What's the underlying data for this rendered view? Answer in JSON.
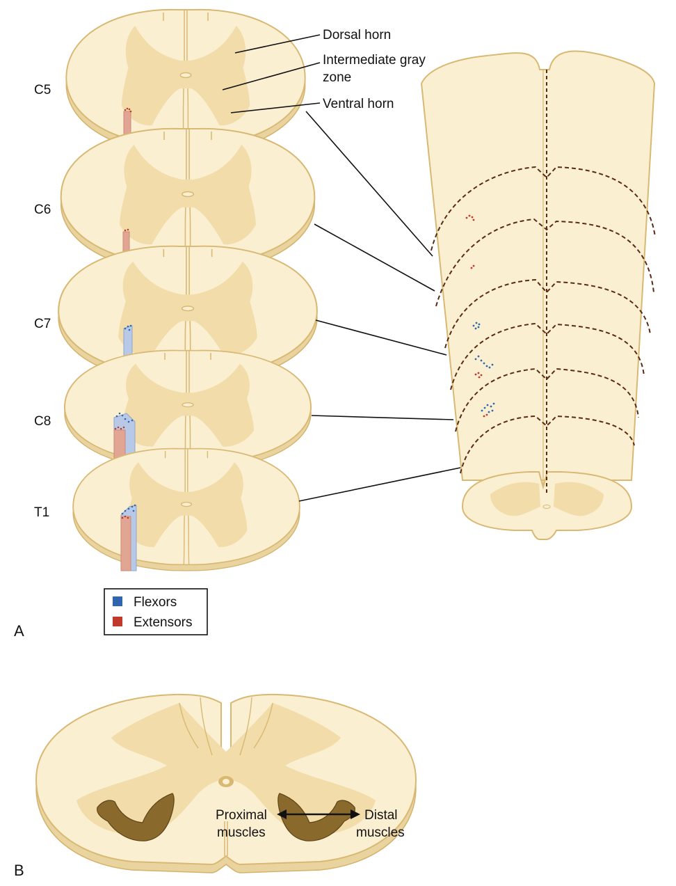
{
  "panel_a": {
    "letter": "A",
    "segments": [
      "C5",
      "C6",
      "C7",
      "C8",
      "T1"
    ],
    "labels": {
      "dorsal": "Dorsal horn",
      "intermediate_line1": "Intermediate gray",
      "intermediate_line2": "zone",
      "ventral": "Ventral horn"
    },
    "legend": {
      "flexors": "Flexors",
      "extensors": "Extensors"
    }
  },
  "panel_b": {
    "letter": "B",
    "proximal_line1": "Proximal",
    "proximal_line2": "muscles",
    "distal_line1": "Distal",
    "distal_line2": "muscles"
  },
  "colors": {
    "white_matter": "#fbefd2",
    "gray_matter": "#f1dcaa",
    "edge": "#e0c27f",
    "flexor": "#2f66b0",
    "extensor": "#c0392b",
    "flexor_column": "#b7c9e6",
    "extensor_column": "#e3a593",
    "dashed": "#5a2a12"
  }
}
